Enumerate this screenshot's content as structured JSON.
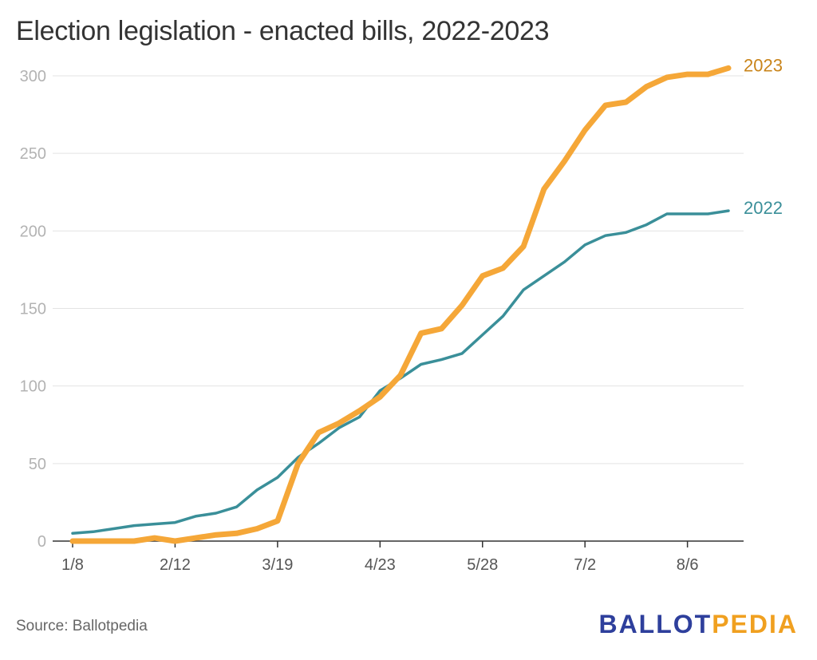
{
  "title": "Election legislation - enacted bills, 2022-2023",
  "source": "Source: Ballotpedia",
  "brand": {
    "part1": "BALLOT",
    "part2": "PEDIA"
  },
  "chart_data": {
    "type": "line",
    "ylim": [
      0,
      305
    ],
    "yticks": [
      0,
      50,
      100,
      150,
      200,
      250,
      300
    ],
    "x_tick_labels": [
      "1/8",
      "2/12",
      "3/19",
      "4/23",
      "5/28",
      "7/2",
      "8/6"
    ],
    "x_tick_index": [
      0,
      5,
      10,
      15,
      20,
      25,
      30
    ],
    "grid": true,
    "series": [
      {
        "name": "2023",
        "color": "#f5a738",
        "values": [
          0,
          0,
          0,
          0,
          2,
          0,
          2,
          4,
          5,
          8,
          13,
          50,
          70,
          76,
          84,
          93,
          107,
          134,
          137,
          152,
          171,
          176,
          190,
          227,
          245,
          265,
          281,
          283,
          293,
          299,
          301,
          301,
          305
        ]
      },
      {
        "name": "2022",
        "color": "#3a8f99",
        "values": [
          5,
          6,
          8,
          10,
          11,
          12,
          16,
          18,
          22,
          33,
          41,
          54,
          63,
          73,
          80,
          97,
          105,
          114,
          117,
          121,
          133,
          145,
          162,
          171,
          180,
          191,
          197,
          199,
          204,
          211,
          211,
          211,
          213
        ]
      }
    ]
  }
}
